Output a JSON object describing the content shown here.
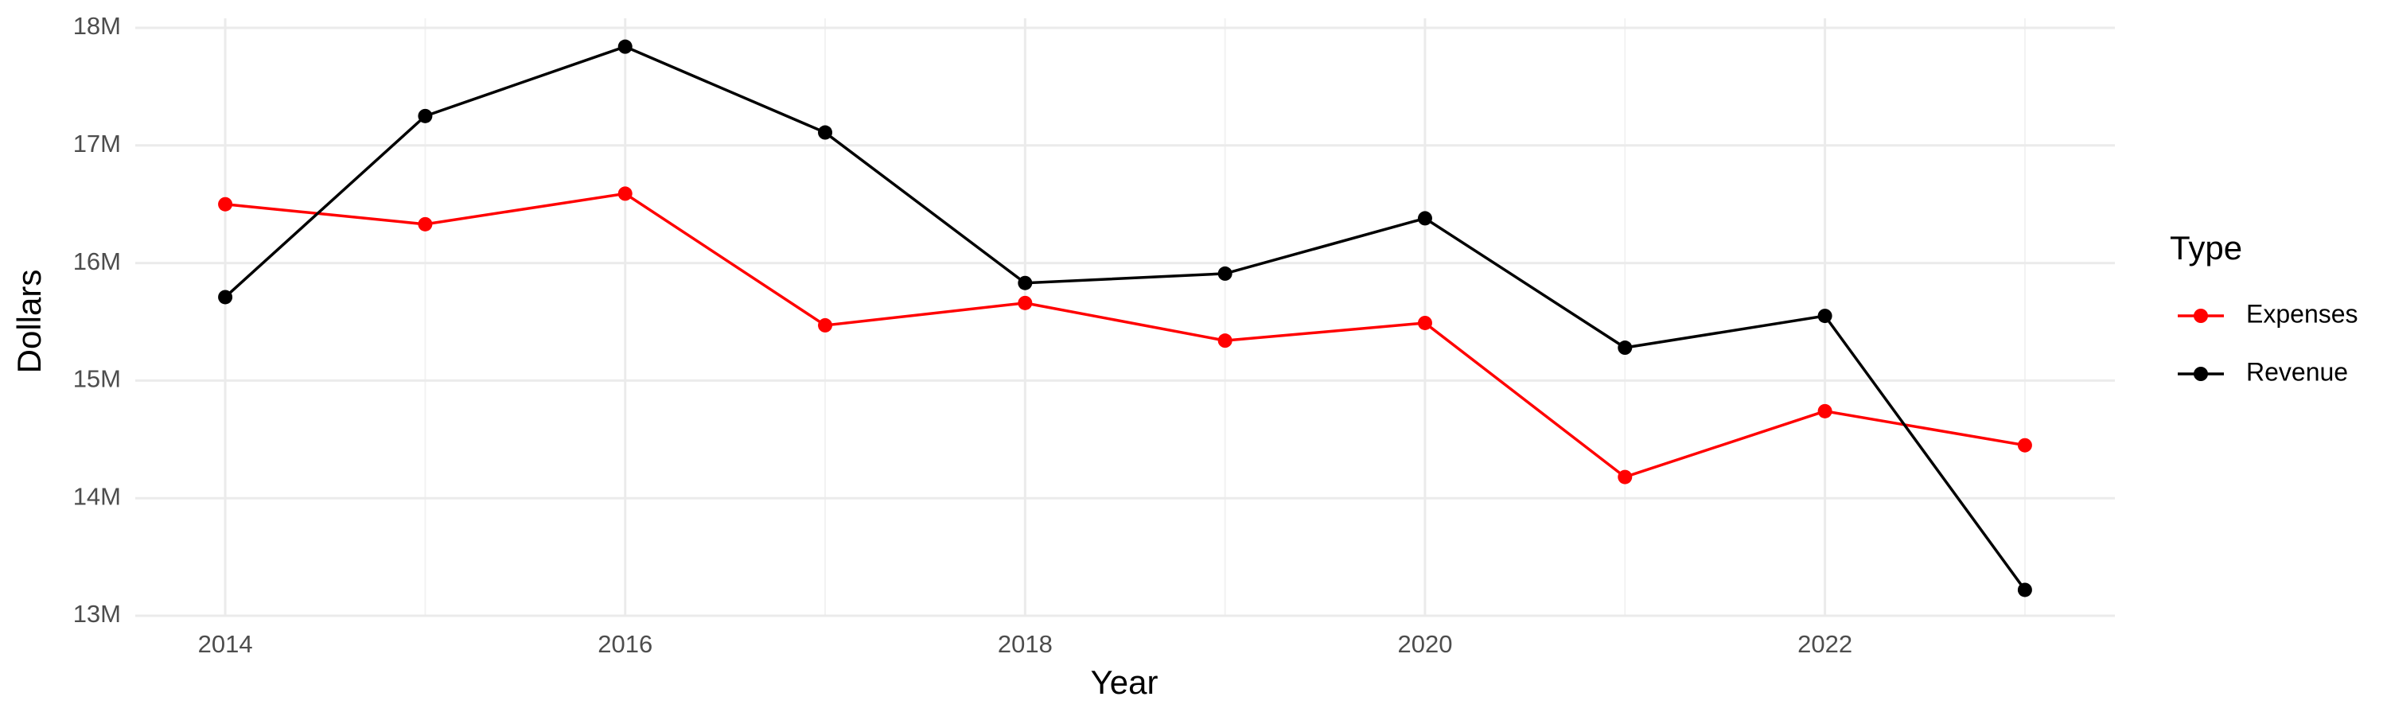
{
  "chart_data": {
    "type": "line",
    "x_label": "Year",
    "y_label": "Dollars",
    "x": [
      2014,
      2015,
      2016,
      2017,
      2018,
      2019,
      2020,
      2021,
      2022,
      2023
    ],
    "series": [
      {
        "name": "Expenses",
        "color": "#ff0000",
        "values": [
          16500000,
          16330000,
          16590000,
          15470000,
          15660000,
          15340000,
          15490000,
          14180000,
          14740000,
          14450000
        ]
      },
      {
        "name": "Revenue",
        "color": "#000000",
        "values": [
          15710000,
          17250000,
          17840000,
          17110000,
          15830000,
          15910000,
          16380000,
          15280000,
          15550000,
          13220000
        ]
      }
    ],
    "xlim": [
      2013.55,
      2023.45
    ],
    "xticks": [
      2014,
      2016,
      2018,
      2020,
      2022
    ],
    "ylim": [
      13000000,
      18000000
    ],
    "yticks": [
      {
        "value": 13000000,
        "label": "13M"
      },
      {
        "value": 14000000,
        "label": "14M"
      },
      {
        "value": 15000000,
        "label": "15M"
      },
      {
        "value": 16000000,
        "label": "16M"
      },
      {
        "value": 17000000,
        "label": "17M"
      },
      {
        "value": 18000000,
        "label": "18M"
      }
    ],
    "legend_title": "Type",
    "legend_position": "right",
    "grid": true
  }
}
